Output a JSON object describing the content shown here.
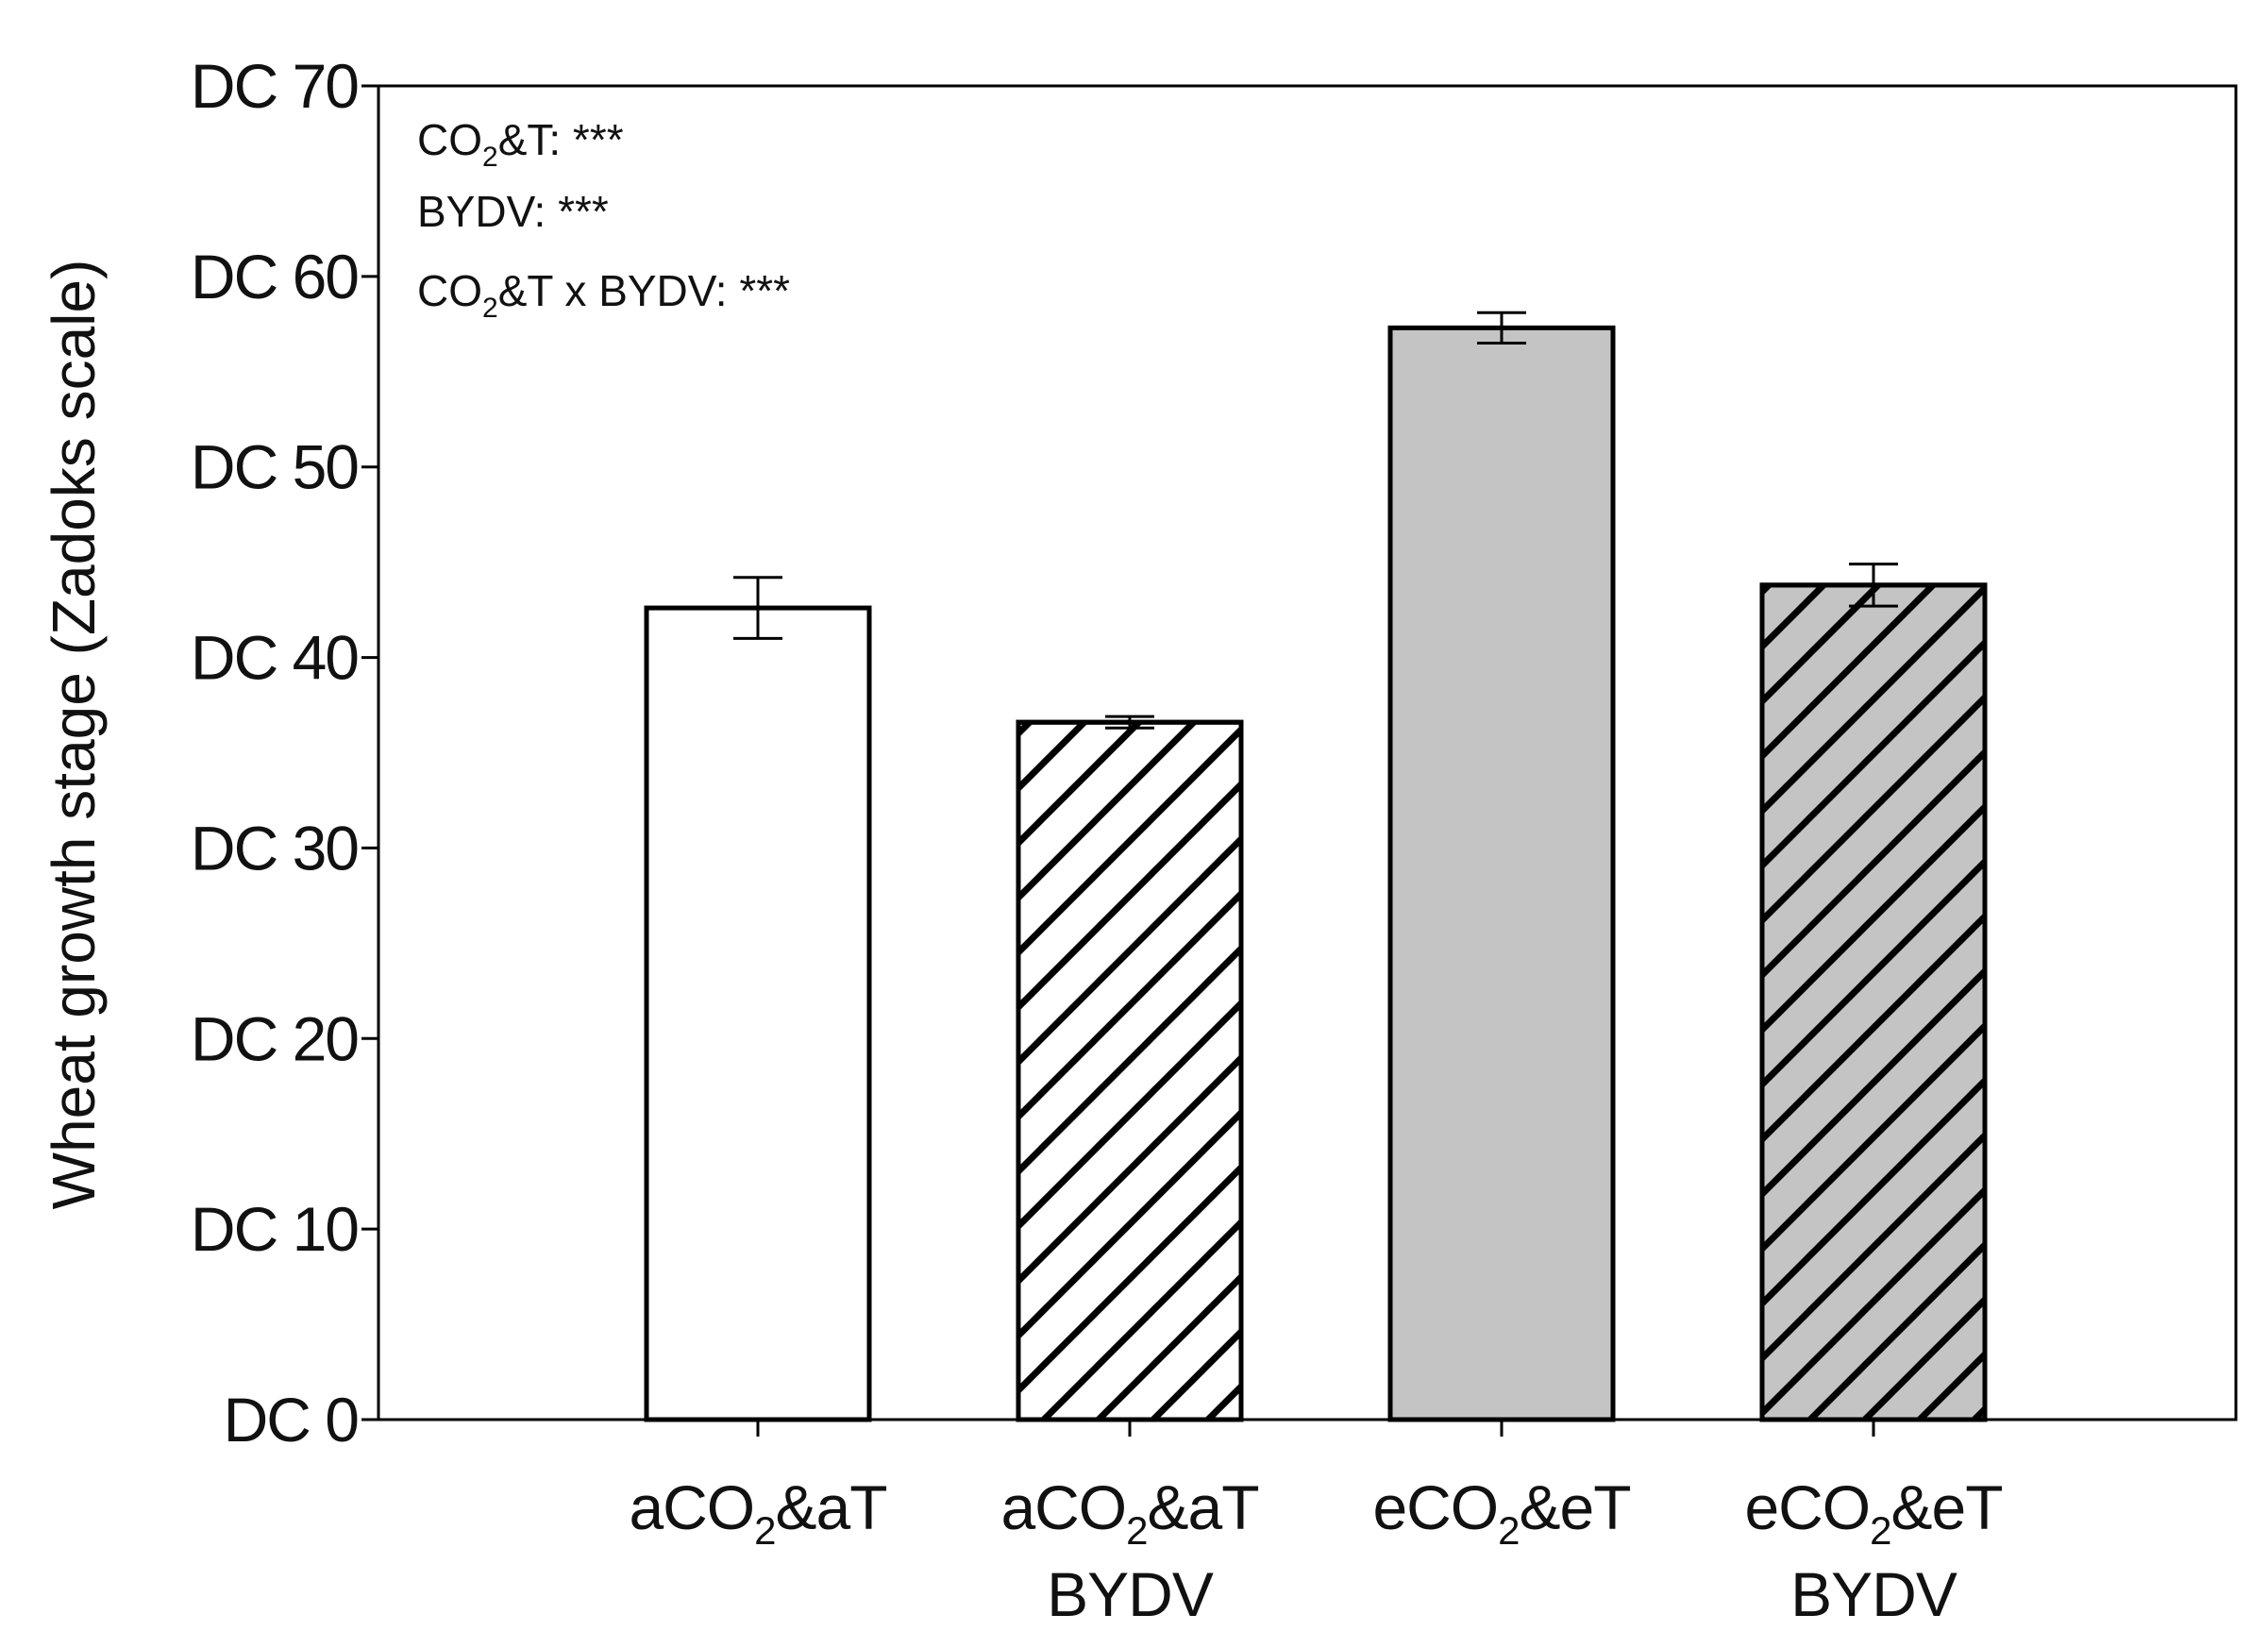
{
  "chart_data": {
    "type": "bar",
    "title": "",
    "xlabel": "",
    "ylabel": "Wheat growth stage (Zadoks scale)",
    "ylim": [
      0,
      70
    ],
    "yticks": [
      0,
      10,
      20,
      30,
      40,
      50,
      60,
      70
    ],
    "ytick_labels": [
      "DC 0",
      "DC 10",
      "DC 20",
      "DC 30",
      "DC 40",
      "DC 50",
      "DC 60",
      "DC 70"
    ],
    "grid": false,
    "categories": [
      {
        "line1_pre": "aCO",
        "line1_sub": "2",
        "line1_post": "&aT",
        "line2": ""
      },
      {
        "line1_pre": "aCO",
        "line1_sub": "2",
        "line1_post": "&aT",
        "line2": "BYDV"
      },
      {
        "line1_pre": "eCO",
        "line1_sub": "2",
        "line1_post": "&eT",
        "line2": ""
      },
      {
        "line1_pre": "eCO",
        "line1_sub": "2",
        "line1_post": "&eT",
        "line2": "BYDV"
      }
    ],
    "values": [
      42.6,
      36.6,
      57.3,
      43.8
    ],
    "errors": [
      1.6,
      0.3,
      0.8,
      1.1
    ],
    "fills": [
      "#ffffff",
      "#ffffff",
      "#c4c4c4",
      "#c4c4c4"
    ],
    "hatched": [
      false,
      true,
      false,
      true
    ],
    "annotations": [
      {
        "pre": "CO",
        "sub": "2",
        "post": "&T: ***"
      },
      {
        "pre": "BYDV: ***",
        "sub": "",
        "post": ""
      },
      {
        "pre": "CO",
        "sub": "2",
        "post": "&T x BYDV: ***"
      }
    ]
  }
}
